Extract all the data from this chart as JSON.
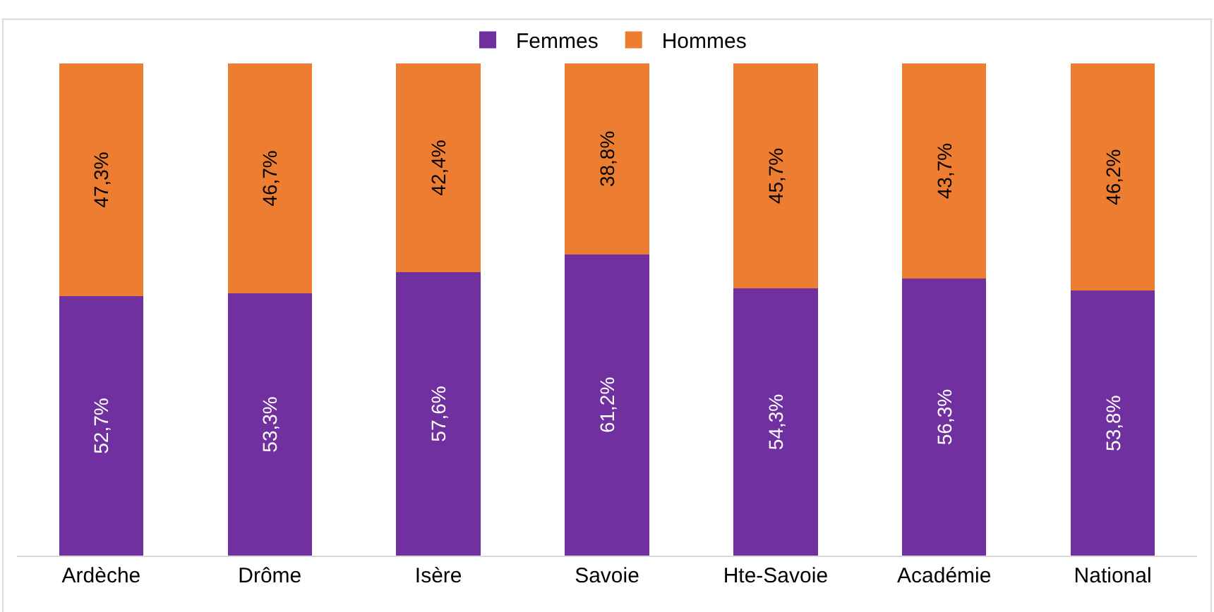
{
  "chart_data": {
    "type": "bar",
    "stacked": true,
    "legend": "top",
    "tick_labels": "x",
    "ylim": [
      0,
      100
    ],
    "categories": [
      "Ardèche",
      "Drôme",
      "Isère",
      "Savoie",
      "Hte-Savoie",
      "Académie",
      "National"
    ],
    "series": [
      {
        "name": "Femmes",
        "color": "#7030a0",
        "values": [
          52.7,
          53.3,
          57.6,
          61.2,
          54.3,
          56.3,
          53.8
        ],
        "value_labels": [
          "52,7%",
          "53,3%",
          "57,6%",
          "61,2%",
          "54,3%",
          "56,3%",
          "53,8%"
        ]
      },
      {
        "name": "Hommes",
        "color": "#ed7d31",
        "values": [
          47.3,
          46.7,
          42.4,
          38.8,
          45.7,
          43.7,
          46.2
        ],
        "value_labels": [
          "47,3%",
          "46,7%",
          "42,4%",
          "38,8%",
          "45,7%",
          "43,7%",
          "46,2%"
        ]
      }
    ]
  }
}
